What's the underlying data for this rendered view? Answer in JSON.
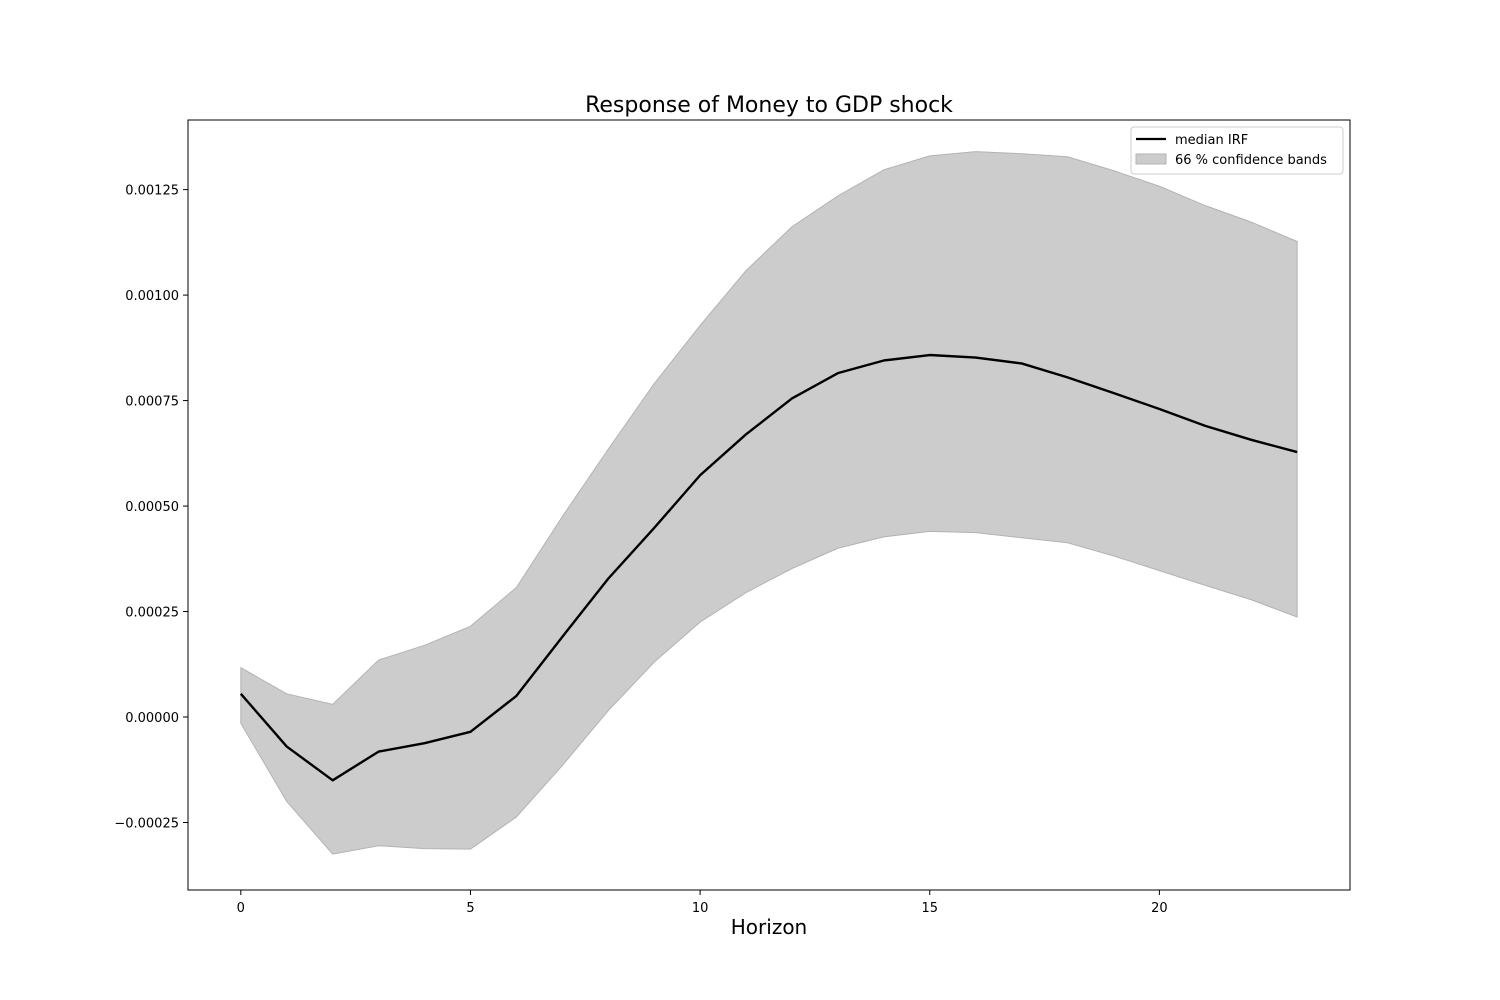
{
  "chart_data": {
    "type": "line",
    "title": "Response of Money to GDP shock",
    "xlabel": "Horizon",
    "ylabel": "",
    "xlim": [
      -1.15,
      24.15
    ],
    "ylim": [
      -0.00041,
      0.001415
    ],
    "xticks": [
      0,
      5,
      10,
      15,
      20
    ],
    "xtick_labels": [
      "0",
      "5",
      "10",
      "15",
      "20"
    ],
    "yticks": [
      -0.00025,
      0.0,
      0.00025,
      0.0005,
      0.00075,
      0.001,
      0.00125
    ],
    "ytick_labels": [
      "−0.00025",
      "0.00000",
      "0.00025",
      "0.00050",
      "0.00075",
      "0.00100",
      "0.00125"
    ],
    "grid": false,
    "legend_position": "top-right",
    "x": [
      0,
      1,
      2,
      3,
      4,
      5,
      6,
      7,
      8,
      9,
      10,
      11,
      12,
      13,
      14,
      15,
      16,
      17,
      18,
      19,
      20,
      21,
      22,
      23
    ],
    "series": [
      {
        "name": "median IRF",
        "type": "line",
        "color": "#000000",
        "values": [
          5.5e-05,
          -7e-05,
          -0.00015,
          -8.2e-05,
          -6.2e-05,
          -3.5e-05,
          5e-05,
          0.00019,
          0.000328,
          0.000448,
          0.000573,
          0.00067,
          0.000755,
          0.000815,
          0.000845,
          0.000858,
          0.000852,
          0.000838,
          0.000805,
          0.000768,
          0.00073,
          0.00069,
          0.000657,
          0.000628
        ]
      },
      {
        "name": "66 % confidence bands",
        "type": "band",
        "color": "#cccccc",
        "lower": [
          -1.5e-05,
          -0.0002,
          -0.000325,
          -0.000305,
          -0.000312,
          -0.000313,
          -0.000237,
          -0.000115,
          1.5e-05,
          0.00013,
          0.000225,
          0.000295,
          0.000352,
          0.0004,
          0.000427,
          0.00044,
          0.000437,
          0.000425,
          0.000413,
          0.000382,
          0.000347,
          0.000312,
          0.000278,
          0.000237
        ],
        "upper": [
          0.000117,
          5.5e-05,
          3e-05,
          0.000135,
          0.00017,
          0.000215,
          0.000307,
          0.000475,
          0.000635,
          0.00079,
          0.000928,
          0.001058,
          0.001162,
          0.001235,
          0.001297,
          0.00133,
          0.00134,
          0.001335,
          0.001328,
          0.001295,
          0.001258,
          0.001212,
          0.001173,
          0.001127
        ]
      }
    ]
  }
}
